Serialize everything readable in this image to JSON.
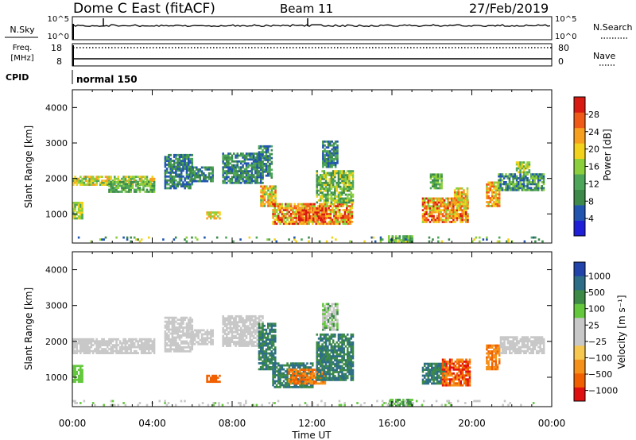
{
  "header": {
    "station": "Dome C East (fitACF)",
    "beam": "Beam 11",
    "date": "27/Feb/2019"
  },
  "noise_panel": {
    "left_label": "N.Sky",
    "right_label": "N.Search",
    "left_ticks": [
      "10^5",
      "10^0"
    ],
    "right_ticks": [
      "10^5",
      "10^0"
    ]
  },
  "freq_panel": {
    "left_label_line1": "Freq.",
    "left_label_line2": "[MHz]",
    "right_label": "Nave",
    "left_ticks": [
      "18",
      "8"
    ],
    "right_ticks": [
      "80",
      "0"
    ]
  },
  "cpid": {
    "label": "CPID",
    "value": "normal 150"
  },
  "colors": {
    "power": [
      "#1f1fd8",
      "#2155b0",
      "#3d8a4a",
      "#4da65a",
      "#8ccf3c",
      "#f2d21a",
      "#f7a020",
      "#f05a18",
      "#d81a12"
    ],
    "velocity": [
      "#e01010",
      "#f06000",
      "#f59018",
      "#f7c850",
      "#c8c8c8",
      "#c8c8c8",
      "#64c83c",
      "#3c8a46",
      "#2d6e86",
      "#2244aa"
    ]
  },
  "chart_data": [
    {
      "type": "heatmap",
      "name": "power",
      "ylabel": "Slant Range [km]",
      "xlim": [
        0,
        24
      ],
      "ylim": [
        180,
        4500
      ],
      "yticks": [
        1000,
        2000,
        3000,
        4000
      ],
      "xticks": [
        "00:00",
        "04:00",
        "08:00",
        "12:00",
        "16:00",
        "20:00",
        "00:00"
      ],
      "colorbar": {
        "label": "Power [dB]",
        "range": [
          0,
          32
        ],
        "ticks": [
          "4",
          "8",
          "12",
          "16",
          "20",
          "24",
          "28"
        ]
      },
      "regions": [
        {
          "t": [
            0.0,
            4.1
          ],
          "r": [
            1800,
            2050
          ],
          "level": [
            3,
            6
          ]
        },
        {
          "t": [
            1.8,
            4.1
          ],
          "r": [
            1600,
            1900
          ],
          "level": [
            2,
            4
          ]
        },
        {
          "t": [
            0.0,
            0.5
          ],
          "r": [
            850,
            1300
          ],
          "level": [
            3,
            5
          ]
        },
        {
          "t": [
            4.6,
            6.0
          ],
          "r": [
            1700,
            2650
          ],
          "level": [
            1,
            3
          ]
        },
        {
          "t": [
            5.9,
            7.0
          ],
          "r": [
            1900,
            2300
          ],
          "level": [
            1,
            3
          ]
        },
        {
          "t": [
            6.7,
            7.4
          ],
          "r": [
            850,
            1050
          ],
          "level": [
            4,
            6
          ]
        },
        {
          "t": [
            7.5,
            9.5
          ],
          "r": [
            1850,
            2700
          ],
          "level": [
            1,
            3
          ]
        },
        {
          "t": [
            9.3,
            10.0
          ],
          "r": [
            2000,
            2900
          ],
          "level": [
            1,
            3
          ]
        },
        {
          "t": [
            9.4,
            10.2
          ],
          "r": [
            1200,
            1800
          ],
          "level": [
            3,
            7
          ]
        },
        {
          "t": [
            10.0,
            14.0
          ],
          "r": [
            700,
            1300
          ],
          "level": [
            4,
            8
          ]
        },
        {
          "t": [
            11.3,
            12.7
          ],
          "r": [
            800,
            1150
          ],
          "level": [
            6,
            8
          ]
        },
        {
          "t": [
            12.2,
            14.0
          ],
          "r": [
            1300,
            2200
          ],
          "level": [
            2,
            5
          ]
        },
        {
          "t": [
            12.5,
            13.3
          ],
          "r": [
            2300,
            3050
          ],
          "level": [
            1,
            3
          ]
        },
        {
          "t": [
            15.8,
            17.0
          ],
          "r": [
            180,
            380
          ],
          "level": [
            2,
            4
          ]
        },
        {
          "t": [
            17.5,
            19.8
          ],
          "r": [
            750,
            1450
          ],
          "level": [
            4,
            8
          ]
        },
        {
          "t": [
            17.9,
            18.5
          ],
          "r": [
            1700,
            2100
          ],
          "level": [
            2,
            4
          ]
        },
        {
          "t": [
            19.1,
            19.8
          ],
          "r": [
            1200,
            1700
          ],
          "level": [
            4,
            7
          ]
        },
        {
          "t": [
            20.7,
            21.4
          ],
          "r": [
            1200,
            1900
          ],
          "level": [
            4,
            7
          ]
        },
        {
          "t": [
            21.3,
            23.6
          ],
          "r": [
            1650,
            2100
          ],
          "level": [
            1,
            4
          ]
        },
        {
          "t": [
            22.2,
            22.9
          ],
          "r": [
            2150,
            2450
          ],
          "level": [
            3,
            5
          ]
        },
        {
          "t": [
            0.0,
            23.6
          ],
          "r": [
            200,
            330
          ],
          "level": [
            1,
            5
          ],
          "sparse": true
        }
      ]
    },
    {
      "type": "heatmap",
      "name": "velocity",
      "ylabel": "Slant Range [km]",
      "xlabel": "Time UT",
      "xlim": [
        0,
        24
      ],
      "ylim": [
        180,
        4500
      ],
      "yticks": [
        1000,
        2000,
        3000,
        4000
      ],
      "xticks": [
        "00:00",
        "04:00",
        "08:00",
        "12:00",
        "16:00",
        "20:00",
        "00:00"
      ],
      "colorbar": {
        "label": "Velocity [m s⁻¹]",
        "ticks": [
          "1000",
          "500",
          "100",
          "25",
          "−25",
          "−100",
          "−500",
          "−1000"
        ]
      },
      "regions": [
        {
          "t": [
            0.0,
            4.1
          ],
          "r": [
            1650,
            2050
          ],
          "level": [
            4,
            5
          ]
        },
        {
          "t": [
            0.0,
            0.5
          ],
          "r": [
            850,
            1300
          ],
          "level": [
            6,
            6
          ]
        },
        {
          "t": [
            4.6,
            6.0
          ],
          "r": [
            1700,
            2650
          ],
          "level": [
            4,
            5
          ]
        },
        {
          "t": [
            5.9,
            7.0
          ],
          "r": [
            1900,
            2300
          ],
          "level": [
            4,
            5
          ]
        },
        {
          "t": [
            6.7,
            7.4
          ],
          "r": [
            850,
            1050
          ],
          "level": [
            1,
            1
          ]
        },
        {
          "t": [
            7.5,
            9.5
          ],
          "r": [
            1850,
            2700
          ],
          "level": [
            4,
            5
          ]
        },
        {
          "t": [
            9.3,
            10.2
          ],
          "r": [
            1200,
            2500
          ],
          "level": [
            7,
            8
          ]
        },
        {
          "t": [
            10.0,
            12.0
          ],
          "r": [
            700,
            1400
          ],
          "level": [
            7,
            8
          ]
        },
        {
          "t": [
            10.8,
            12.6
          ],
          "r": [
            800,
            1200
          ],
          "level": [
            1,
            2
          ]
        },
        {
          "t": [
            12.2,
            14.0
          ],
          "r": [
            900,
            2200
          ],
          "level": [
            7,
            8
          ]
        },
        {
          "t": [
            12.5,
            13.3
          ],
          "r": [
            2300,
            3050
          ],
          "level": [
            4,
            7
          ]
        },
        {
          "t": [
            15.8,
            17.0
          ],
          "r": [
            180,
            380
          ],
          "level": [
            6,
            7
          ]
        },
        {
          "t": [
            17.5,
            18.6
          ],
          "r": [
            800,
            1400
          ],
          "level": [
            7,
            8
          ]
        },
        {
          "t": [
            18.5,
            19.9
          ],
          "r": [
            750,
            1500
          ],
          "level": [
            0,
            2
          ]
        },
        {
          "t": [
            20.7,
            21.4
          ],
          "r": [
            1200,
            1900
          ],
          "level": [
            1,
            2
          ]
        },
        {
          "t": [
            21.4,
            23.6
          ],
          "r": [
            1650,
            2100
          ],
          "level": [
            4,
            5
          ]
        },
        {
          "t": [
            0.0,
            23.6
          ],
          "r": [
            200,
            330
          ],
          "level": [
            4,
            6
          ],
          "sparse": true
        }
      ]
    }
  ]
}
